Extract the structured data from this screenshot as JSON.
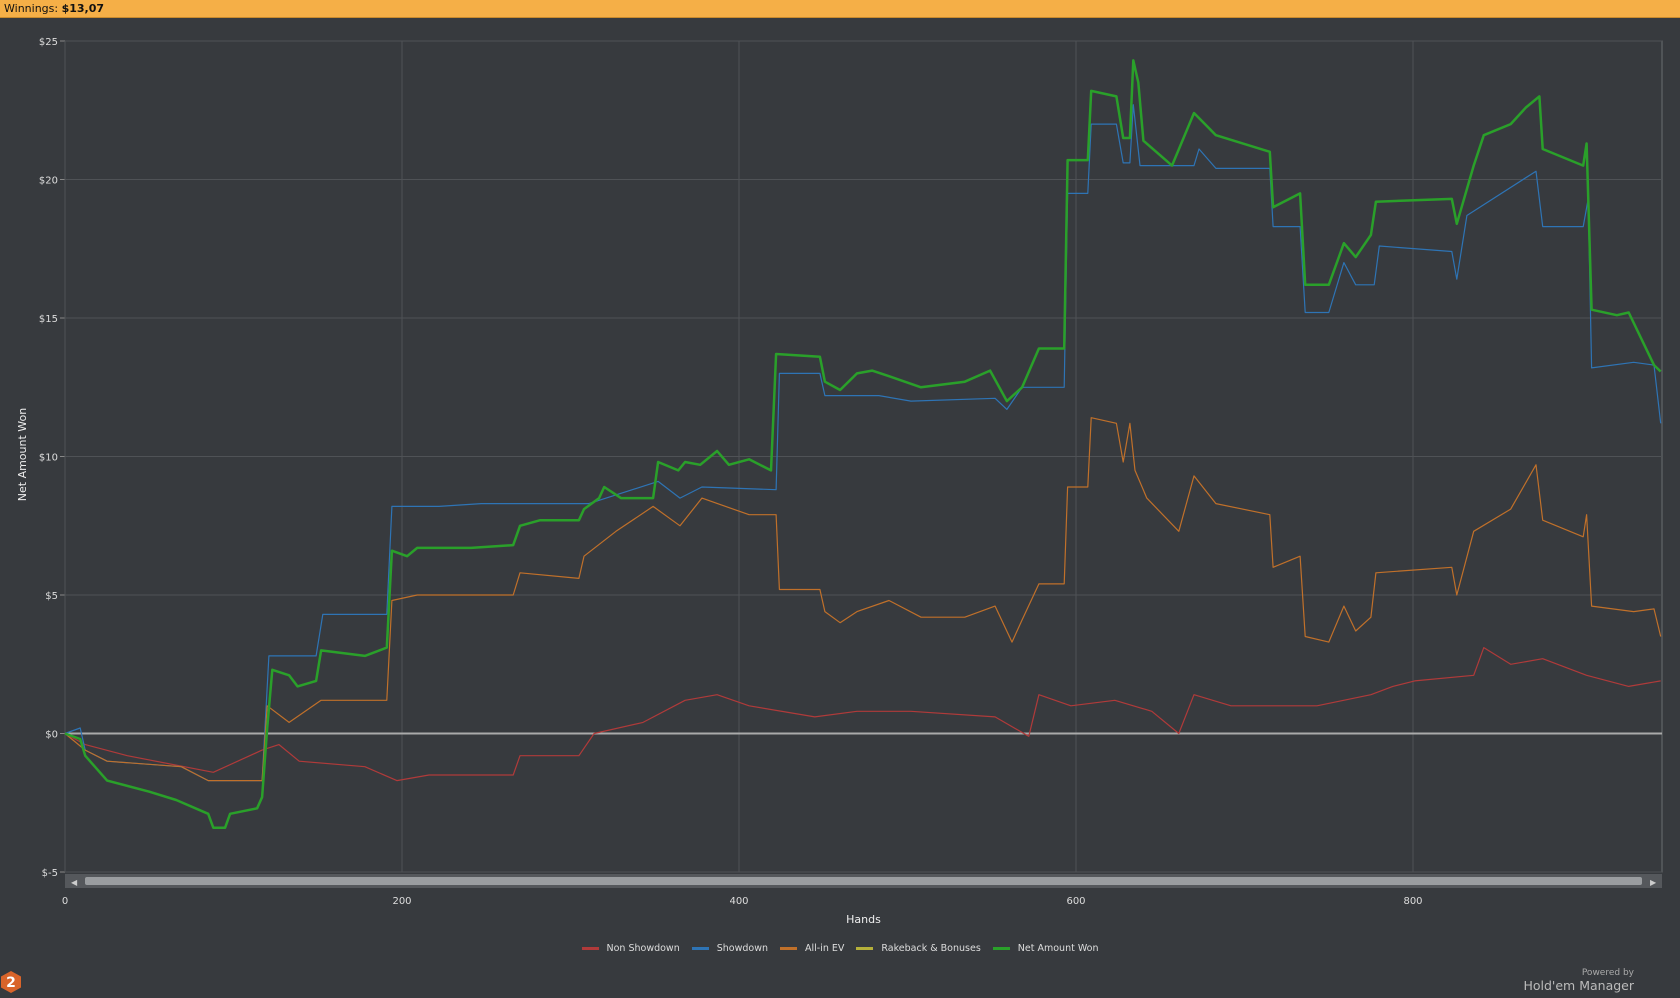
{
  "header": {
    "label": "Winnings:",
    "value": "$13,07"
  },
  "branding": {
    "powered_by": "Powered by",
    "product": "Hold'em Manager",
    "badge": "2"
  },
  "colors": {
    "non_showdown": "#b03a3a",
    "showdown": "#2e74b5",
    "allin_ev": "#c0702a",
    "rakeback": "#b5b03a",
    "net": "#2aa02a"
  },
  "chart_data": {
    "type": "line",
    "xlabel": "Hands",
    "ylabel": "Net Amount Won",
    "xlim": [
      0,
      950
    ],
    "ylim": [
      -5,
      25
    ],
    "xticks": [
      0,
      200,
      400,
      600,
      800
    ],
    "xtick_labels": [
      "0",
      "200",
      "400",
      "600",
      "800"
    ],
    "yticks": [
      -5,
      0,
      5,
      10,
      15,
      20,
      25
    ],
    "ytick_labels": [
      "$-5",
      "$0",
      "$5",
      "$10",
      "$15",
      "$20",
      "$25"
    ],
    "grid": true,
    "legend_position": "bottom",
    "series": [
      {
        "name": "Non Showdown",
        "key": "non_showdown",
        "points": [
          [
            0,
            0
          ],
          [
            12,
            -0.4
          ],
          [
            37,
            -0.8
          ],
          [
            88,
            -1.4
          ],
          [
            117,
            -0.6
          ],
          [
            127,
            -0.4
          ],
          [
            139,
            -1.0
          ],
          [
            178,
            -1.2
          ],
          [
            197,
            -1.7
          ],
          [
            216,
            -1.5
          ],
          [
            266,
            -1.5
          ],
          [
            270,
            -0.8
          ],
          [
            305,
            -0.8
          ],
          [
            314,
            0
          ],
          [
            343,
            0.4
          ],
          [
            368,
            1.2
          ],
          [
            387,
            1.4
          ],
          [
            406,
            1.0
          ],
          [
            445,
            0.6
          ],
          [
            470,
            0.8
          ],
          [
            502,
            0.8
          ],
          [
            552,
            0.6
          ],
          [
            572,
            -0.1
          ],
          [
            578,
            1.4
          ],
          [
            597,
            1.0
          ],
          [
            623,
            1.2
          ],
          [
            645,
            0.8
          ],
          [
            661,
            0
          ],
          [
            670,
            1.4
          ],
          [
            692,
            1.0
          ],
          [
            724,
            1.0
          ],
          [
            743,
            1.0
          ],
          [
            775,
            1.4
          ],
          [
            788,
            1.7
          ],
          [
            801,
            1.9
          ],
          [
            836,
            2.1
          ],
          [
            842,
            3.1
          ],
          [
            858,
            2.5
          ],
          [
            877,
            2.7
          ],
          [
            903,
            2.1
          ],
          [
            928,
            1.7
          ],
          [
            947,
            1.9
          ]
        ]
      },
      {
        "name": "Showdown",
        "key": "showdown",
        "points": [
          [
            0,
            0
          ],
          [
            9,
            0.2
          ],
          [
            12,
            -0.6
          ],
          [
            25,
            -1.0
          ],
          [
            69,
            -1.2
          ],
          [
            85,
            -1.7
          ],
          [
            117,
            -1.7
          ],
          [
            121,
            2.8
          ],
          [
            149,
            2.8
          ],
          [
            153,
            4.3
          ],
          [
            191,
            4.3
          ],
          [
            194,
            8.2
          ],
          [
            222,
            8.2
          ],
          [
            247,
            8.3
          ],
          [
            311,
            8.3
          ],
          [
            352,
            9.1
          ],
          [
            365,
            8.5
          ],
          [
            378,
            8.9
          ],
          [
            422,
            8.8
          ],
          [
            424,
            13.0
          ],
          [
            448,
            13.0
          ],
          [
            451,
            12.2
          ],
          [
            483,
            12.2
          ],
          [
            502,
            12.0
          ],
          [
            552,
            12.1
          ],
          [
            559,
            11.7
          ],
          [
            568,
            12.5
          ],
          [
            593,
            12.5
          ],
          [
            595,
            19.5
          ],
          [
            607,
            19.5
          ],
          [
            609,
            22.0
          ],
          [
            624,
            22.0
          ],
          [
            628,
            20.6
          ],
          [
            632,
            20.6
          ],
          [
            634,
            22.7
          ],
          [
            638,
            20.5
          ],
          [
            670,
            20.5
          ],
          [
            673,
            21.1
          ],
          [
            683,
            20.4
          ],
          [
            715,
            20.4
          ],
          [
            717,
            18.3
          ],
          [
            733,
            18.3
          ],
          [
            736,
            15.2
          ],
          [
            750,
            15.2
          ],
          [
            759,
            17.0
          ],
          [
            766,
            16.2
          ],
          [
            777,
            16.2
          ],
          [
            780,
            17.6
          ],
          [
            823,
            17.4
          ],
          [
            826,
            16.4
          ],
          [
            832,
            18.7
          ],
          [
            873,
            20.3
          ],
          [
            877,
            18.3
          ],
          [
            901,
            18.3
          ],
          [
            904,
            19.3
          ],
          [
            906,
            13.2
          ],
          [
            931,
            13.4
          ],
          [
            943,
            13.3
          ],
          [
            947,
            11.2
          ]
        ]
      },
      {
        "name": "All-in EV",
        "key": "allin_ev",
        "points": [
          [
            0,
            0
          ],
          [
            12,
            -0.6
          ],
          [
            25,
            -1.0
          ],
          [
            69,
            -1.2
          ],
          [
            85,
            -1.7
          ],
          [
            117,
            -1.7
          ],
          [
            120,
            1.0
          ],
          [
            133,
            0.4
          ],
          [
            152,
            1.2
          ],
          [
            191,
            1.2
          ],
          [
            194,
            4.8
          ],
          [
            209,
            5.0
          ],
          [
            266,
            5.0
          ],
          [
            270,
            5.8
          ],
          [
            305,
            5.6
          ],
          [
            308,
            6.4
          ],
          [
            327,
            7.3
          ],
          [
            349,
            8.2
          ],
          [
            365,
            7.5
          ],
          [
            378,
            8.5
          ],
          [
            406,
            7.9
          ],
          [
            422,
            7.9
          ],
          [
            424,
            5.2
          ],
          [
            448,
            5.2
          ],
          [
            451,
            4.4
          ],
          [
            460,
            4.0
          ],
          [
            470,
            4.4
          ],
          [
            489,
            4.8
          ],
          [
            508,
            4.2
          ],
          [
            534,
            4.2
          ],
          [
            552,
            4.6
          ],
          [
            562,
            3.3
          ],
          [
            568,
            4.1
          ],
          [
            578,
            5.4
          ],
          [
            593,
            5.4
          ],
          [
            595,
            8.9
          ],
          [
            607,
            8.9
          ],
          [
            609,
            11.4
          ],
          [
            624,
            11.2
          ],
          [
            628,
            9.8
          ],
          [
            632,
            11.2
          ],
          [
            635,
            9.5
          ],
          [
            642,
            8.5
          ],
          [
            661,
            7.3
          ],
          [
            670,
            9.3
          ],
          [
            683,
            8.3
          ],
          [
            715,
            7.9
          ],
          [
            717,
            6.0
          ],
          [
            733,
            6.4
          ],
          [
            736,
            3.5
          ],
          [
            750,
            3.3
          ],
          [
            759,
            4.6
          ],
          [
            766,
            3.7
          ],
          [
            775,
            4.2
          ],
          [
            778,
            5.8
          ],
          [
            823,
            6.0
          ],
          [
            826,
            5.0
          ],
          [
            836,
            7.3
          ],
          [
            858,
            8.1
          ],
          [
            873,
            9.7
          ],
          [
            877,
            7.7
          ],
          [
            901,
            7.1
          ],
          [
            903,
            7.9
          ],
          [
            906,
            4.6
          ],
          [
            931,
            4.4
          ],
          [
            943,
            4.5
          ],
          [
            947,
            3.5
          ]
        ]
      },
      {
        "name": "Rakeback & Bonuses",
        "key": "rakeback",
        "points": []
      },
      {
        "name": "Net Amount Won",
        "key": "net",
        "points": [
          [
            0,
            0
          ],
          [
            9,
            -0.2
          ],
          [
            12,
            -0.8
          ],
          [
            25,
            -1.7
          ],
          [
            50,
            -2.1
          ],
          [
            66,
            -2.4
          ],
          [
            85,
            -2.9
          ],
          [
            88,
            -3.4
          ],
          [
            95,
            -3.4
          ],
          [
            98,
            -2.9
          ],
          [
            114,
            -2.7
          ],
          [
            117,
            -2.3
          ],
          [
            120,
            0.2
          ],
          [
            123,
            2.3
          ],
          [
            133,
            2.1
          ],
          [
            138,
            1.7
          ],
          [
            149,
            1.9
          ],
          [
            152,
            3.0
          ],
          [
            178,
            2.8
          ],
          [
            191,
            3.1
          ],
          [
            194,
            6.6
          ],
          [
            203,
            6.4
          ],
          [
            209,
            6.7
          ],
          [
            241,
            6.7
          ],
          [
            266,
            6.8
          ],
          [
            270,
            7.5
          ],
          [
            282,
            7.7
          ],
          [
            305,
            7.7
          ],
          [
            308,
            8.1
          ],
          [
            317,
            8.5
          ],
          [
            320,
            8.9
          ],
          [
            330,
            8.5
          ],
          [
            349,
            8.5
          ],
          [
            352,
            9.8
          ],
          [
            364,
            9.5
          ],
          [
            368,
            9.8
          ],
          [
            377,
            9.7
          ],
          [
            387,
            10.2
          ],
          [
            394,
            9.7
          ],
          [
            406,
            9.9
          ],
          [
            419,
            9.5
          ],
          [
            422,
            13.7
          ],
          [
            448,
            13.6
          ],
          [
            451,
            12.7
          ],
          [
            460,
            12.4
          ],
          [
            470,
            13.0
          ],
          [
            479,
            13.1
          ],
          [
            489,
            12.9
          ],
          [
            508,
            12.5
          ],
          [
            534,
            12.7
          ],
          [
            549,
            13.1
          ],
          [
            559,
            12.0
          ],
          [
            568,
            12.5
          ],
          [
            578,
            13.9
          ],
          [
            593,
            13.9
          ],
          [
            595,
            20.7
          ],
          [
            607,
            20.7
          ],
          [
            609,
            23.2
          ],
          [
            624,
            23.0
          ],
          [
            628,
            21.5
          ],
          [
            632,
            21.5
          ],
          [
            634,
            24.3
          ],
          [
            637,
            23.5
          ],
          [
            640,
            21.4
          ],
          [
            657,
            20.5
          ],
          [
            670,
            22.4
          ],
          [
            683,
            21.6
          ],
          [
            715,
            21.0
          ],
          [
            717,
            19.0
          ],
          [
            733,
            19.5
          ],
          [
            736,
            16.2
          ],
          [
            750,
            16.2
          ],
          [
            759,
            17.7
          ],
          [
            766,
            17.2
          ],
          [
            775,
            18.0
          ],
          [
            778,
            19.2
          ],
          [
            823,
            19.3
          ],
          [
            826,
            18.4
          ],
          [
            836,
            20.5
          ],
          [
            842,
            21.6
          ],
          [
            858,
            22.0
          ],
          [
            867,
            22.6
          ],
          [
            875,
            23.0
          ],
          [
            877,
            21.1
          ],
          [
            901,
            20.5
          ],
          [
            903,
            21.3
          ],
          [
            906,
            15.3
          ],
          [
            921,
            15.1
          ],
          [
            928,
            15.2
          ],
          [
            943,
            13.3
          ],
          [
            947,
            13.07
          ]
        ]
      }
    ]
  }
}
